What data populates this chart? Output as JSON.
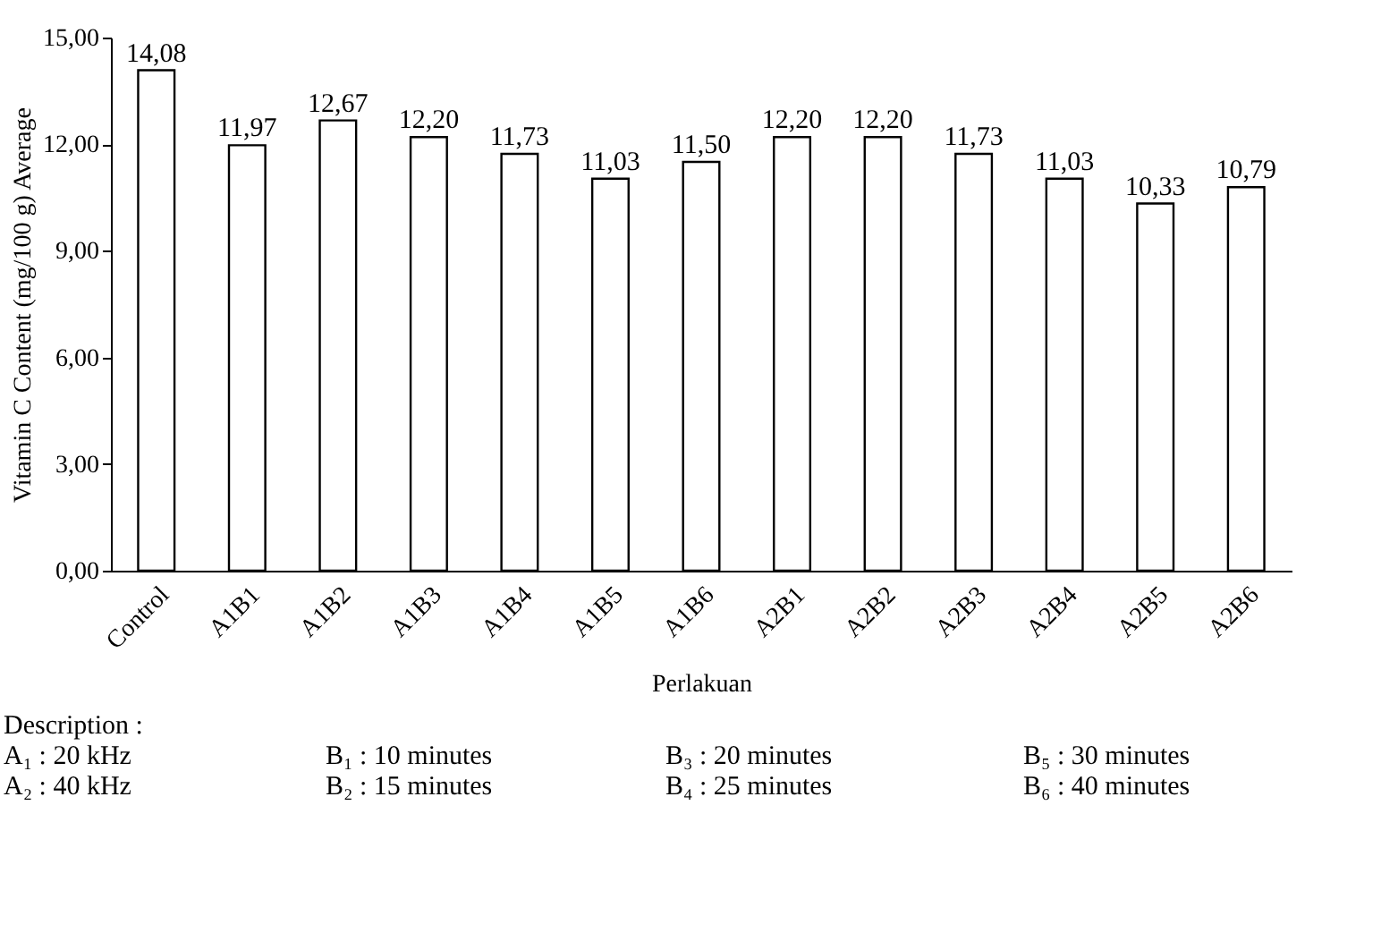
{
  "chart_data": {
    "type": "bar",
    "xlabel": "Perlakuan",
    "ylabel": "Vitamin C Content (mg/100 g) Average",
    "categories": [
      "Control",
      "A1B1",
      "A1B2",
      "A1B3",
      "A1B4",
      "A1B5",
      "A1B6",
      "A2B1",
      "A2B2",
      "A2B3",
      "A2B4",
      "A2B5",
      "A2B6"
    ],
    "values": [
      14.08,
      11.97,
      12.67,
      12.2,
      11.73,
      11.03,
      11.5,
      12.2,
      12.2,
      11.73,
      11.03,
      10.33,
      10.79
    ],
    "value_labels": [
      "14,08",
      "11,97",
      "12,67",
      "12,20",
      "11,73",
      "11,03",
      "11,50",
      "12,20",
      "12,20",
      "11,73",
      "11,03",
      "10,33",
      "10,79"
    ],
    "color": "#ffffff",
    "ylim": [
      0,
      15
    ],
    "yticks": [
      {
        "value": 0,
        "label": "0,00"
      },
      {
        "value": 3,
        "label": "3,00"
      },
      {
        "value": 6,
        "label": "6,00"
      },
      {
        "value": 9,
        "label": "9,00"
      },
      {
        "value": 12,
        "label": "12,00"
      },
      {
        "value": 15,
        "label": "15,00"
      }
    ],
    "grid": false,
    "annotations": [
      "Description :",
      "A₁ : 20 kHz",
      "B₁ : 10 minutes",
      "B₃ : 20 minutes",
      "B₅ : 30 minutes",
      "A₂ : 40 kHz",
      "B₂ : 15 minutes",
      "B₄ : 25 minutes",
      "B₆ : 40 minutes"
    ]
  }
}
